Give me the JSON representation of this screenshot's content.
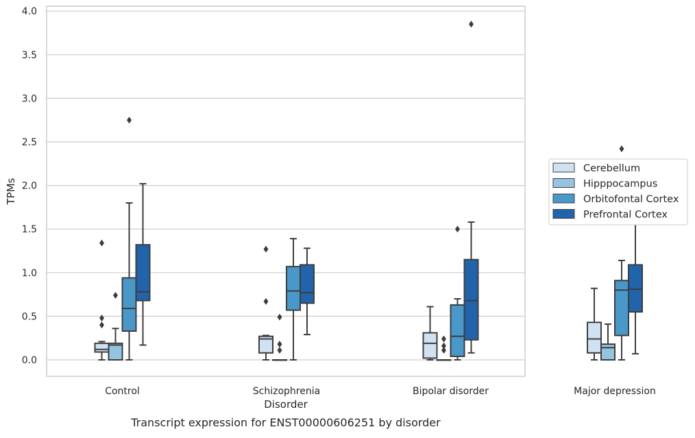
{
  "caption": "Transcript expression for ENST00000606251 by disorder",
  "chart_data": {
    "type": "box",
    "title": "",
    "xlabel": "Disorder",
    "ylabel": "TPMs",
    "ylim": [
      -0.18,
      4.05
    ],
    "yticks": [
      "0.0",
      "0.5",
      "1.0",
      "1.5",
      "2.0",
      "2.5",
      "3.0",
      "3.5",
      "4.0"
    ],
    "categories": [
      "Control",
      "Schizophrenia",
      "Bipolar disorder",
      "Major depression"
    ],
    "grid": "horizontal",
    "legend_position": "right",
    "series": [
      {
        "name": "Cerebellum",
        "color": "#d0e1f2",
        "boxes": [
          {
            "q1": 0.09,
            "median": 0.12,
            "q3": 0.19,
            "whisker_low": 0.0,
            "whisker_high": 0.21,
            "outliers": [
              0.4,
              0.48,
              1.34
            ]
          },
          {
            "q1": 0.08,
            "median": 0.24,
            "q3": 0.27,
            "whisker_low": 0.0,
            "whisker_high": 0.28,
            "outliers": [
              0.67,
              1.27
            ]
          },
          {
            "q1": 0.02,
            "median": 0.19,
            "q3": 0.31,
            "whisker_low": 0.0,
            "whisker_high": 0.61,
            "outliers": []
          },
          {
            "q1": 0.08,
            "median": 0.24,
            "q3": 0.43,
            "whisker_low": 0.0,
            "whisker_high": 0.82,
            "outliers": [
              2.09
            ]
          }
        ]
      },
      {
        "name": "Hipppocampus",
        "color": "#94c4df",
        "boxes": [
          {
            "q1": 0.0,
            "median": 0.17,
            "q3": 0.19,
            "whisker_low": 0.0,
            "whisker_high": 0.36,
            "outliers": [
              0.74
            ]
          },
          {
            "q1": 0.0,
            "median": 0.0,
            "q3": 0.0,
            "whisker_low": 0.0,
            "whisker_high": 0.0,
            "outliers": [
              0.11,
              0.18,
              0.49
            ]
          },
          {
            "q1": 0.0,
            "median": 0.0,
            "q3": 0.0,
            "whisker_low": 0.0,
            "whisker_high": 0.0,
            "outliers": [
              0.11,
              0.16,
              0.24
            ]
          },
          {
            "q1": 0.0,
            "median": 0.14,
            "q3": 0.18,
            "whisker_low": 0.0,
            "whisker_high": 0.41,
            "outliers": []
          }
        ]
      },
      {
        "name": "Orbitofontal Cortex",
        "color": "#4a98c9",
        "boxes": [
          {
            "q1": 0.33,
            "median": 0.59,
            "q3": 0.94,
            "whisker_low": 0.0,
            "whisker_high": 1.8,
            "outliers": [
              2.75
            ]
          },
          {
            "q1": 0.57,
            "median": 0.79,
            "q3": 1.07,
            "whisker_low": 0.0,
            "whisker_high": 1.39,
            "outliers": []
          },
          {
            "q1": 0.04,
            "median": 0.27,
            "q3": 0.63,
            "whisker_low": 0.0,
            "whisker_high": 0.7,
            "outliers": [
              1.5
            ]
          },
          {
            "q1": 0.28,
            "median": 0.8,
            "q3": 0.91,
            "whisker_low": 0.0,
            "whisker_high": 1.14,
            "outliers": [
              2.42
            ]
          }
        ]
      },
      {
        "name": "Prefrontal Cortex",
        "color": "#2164ab",
        "boxes": [
          {
            "q1": 0.68,
            "median": 0.78,
            "q3": 1.32,
            "whisker_low": 0.17,
            "whisker_high": 2.02,
            "outliers": []
          },
          {
            "q1": 0.65,
            "median": 0.77,
            "q3": 1.09,
            "whisker_low": 0.29,
            "whisker_high": 1.28,
            "outliers": []
          },
          {
            "q1": 0.23,
            "median": 0.68,
            "q3": 1.15,
            "whisker_low": 0.08,
            "whisker_high": 1.58,
            "outliers": [
              3.85
            ]
          },
          {
            "q1": 0.55,
            "median": 0.81,
            "q3": 1.09,
            "whisker_low": 0.07,
            "whisker_high": 1.58,
            "outliers": []
          }
        ]
      }
    ]
  }
}
